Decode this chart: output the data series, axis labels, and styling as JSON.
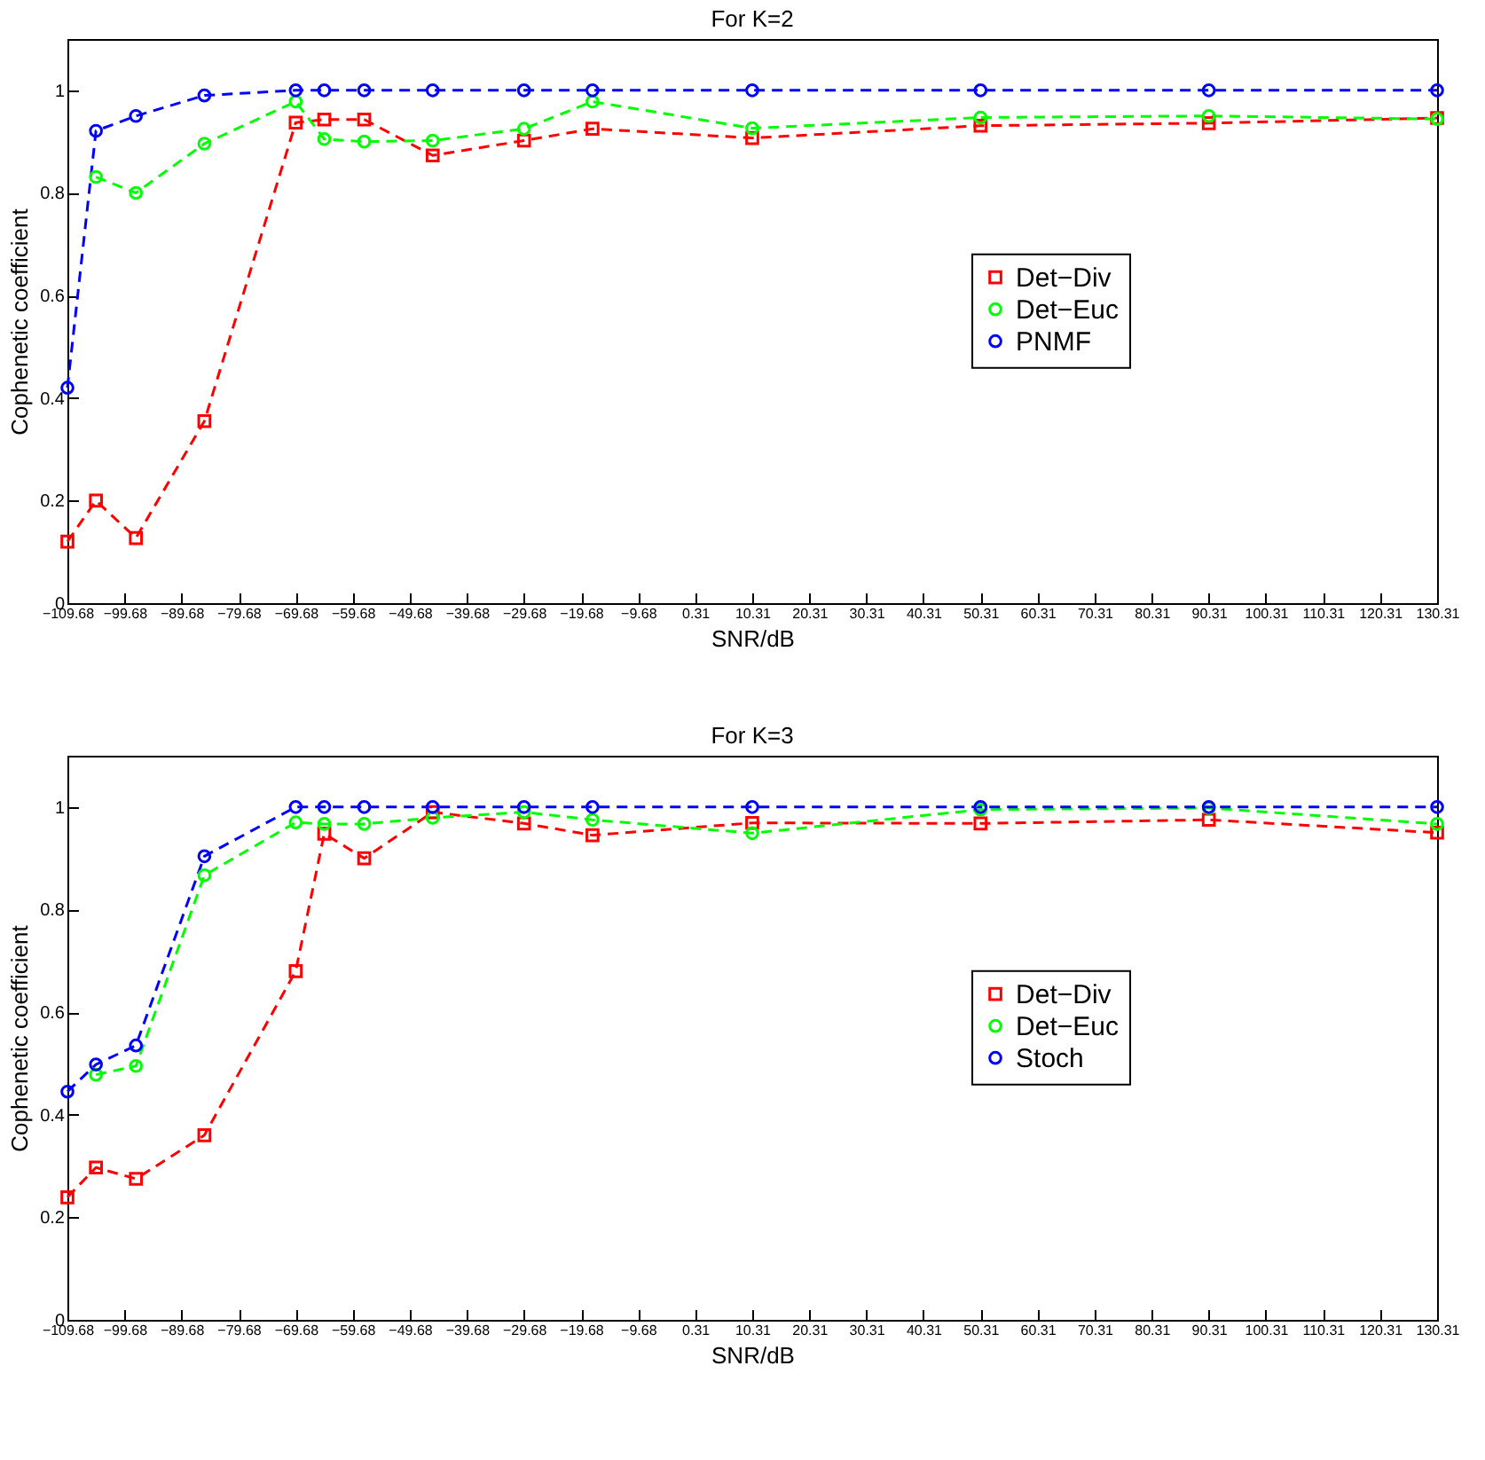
{
  "chart_data": [
    {
      "type": "line",
      "title": "For K=2",
      "xlabel": "SNR/dB",
      "ylabel": "Cophenetic coefficient",
      "x": [
        -109.68,
        -104.68,
        -97.68,
        -85.68,
        -69.68,
        -64.68,
        -57.68,
        -45.68,
        -29.68,
        -17.68,
        10.31,
        50.31,
        90.31,
        130.31
      ],
      "series": [
        {
          "name": "Det−Div",
          "color": "#ff0000",
          "marker": "square",
          "values": [
            0.12,
            0.2,
            0.127,
            0.355,
            0.937,
            0.943,
            0.943,
            0.873,
            0.902,
            0.925,
            0.907,
            0.931,
            0.936,
            0.946
          ]
        },
        {
          "name": "Det−Euc",
          "color": "#00ff00",
          "marker": "circle",
          "values": [
            null,
            0.831,
            0.8,
            0.896,
            0.978,
            0.905,
            0.9,
            0.902,
            0.925,
            0.978,
            0.926,
            0.947,
            0.95,
            0.944
          ]
        },
        {
          "name": "PNMF",
          "color": "#0000ff",
          "marker": "circle",
          "values": [
            0.42,
            0.921,
            0.95,
            0.99,
            1,
            1,
            1,
            1,
            1,
            1,
            1,
            1,
            1,
            1
          ]
        }
      ],
      "xlim": [
        -109.68,
        130.31
      ],
      "xticks": [
        -109.68,
        -99.68,
        -89.68,
        -79.68,
        -69.68,
        -59.68,
        -49.68,
        -39.68,
        -29.68,
        -19.68,
        -9.68,
        0.31,
        10.31,
        20.31,
        30.31,
        40.31,
        50.31,
        60.31,
        70.31,
        80.31,
        90.31,
        100.31,
        110.31,
        120.31,
        130.31
      ],
      "ylim": [
        0,
        1.1
      ],
      "yticks": [
        0,
        0.2,
        0.4,
        0.6,
        0.8,
        1
      ],
      "legend": "right",
      "line_style": "dashed",
      "grid": false
    },
    {
      "type": "line",
      "title": "For K=3",
      "xlabel": "SNR/dB",
      "ylabel": "Cophenetic coefficient",
      "x": [
        -109.68,
        -104.68,
        -97.68,
        -85.68,
        -69.68,
        -64.68,
        -57.68,
        -45.68,
        -29.68,
        -17.68,
        10.31,
        50.31,
        90.31,
        130.31
      ],
      "series": [
        {
          "name": "Det−Div",
          "color": "#ff0000",
          "marker": "square",
          "values": [
            0.239,
            0.297,
            0.275,
            0.36,
            0.68,
            0.948,
            0.9,
            0.99,
            0.968,
            0.945,
            0.969,
            0.968,
            0.975,
            0.95
          ]
        },
        {
          "name": "Det−Euc",
          "color": "#00ff00",
          "marker": "circle",
          "values": [
            null,
            0.478,
            0.495,
            0.867,
            0.97,
            0.967,
            0.967,
            0.979,
            0.99,
            0.975,
            0.949,
            0.995,
            0.998,
            0.967
          ]
        },
        {
          "name": "Stoch",
          "color": "#0000ff",
          "marker": "circle",
          "values": [
            0.445,
            0.498,
            0.535,
            0.904,
            1,
            1,
            1,
            1,
            1,
            1,
            1,
            1,
            1,
            1
          ]
        }
      ],
      "xlim": [
        -109.68,
        130.31
      ],
      "xticks": [
        -109.68,
        -99.68,
        -89.68,
        -79.68,
        -69.68,
        -59.68,
        -49.68,
        -39.68,
        -29.68,
        -19.68,
        -9.68,
        0.31,
        10.31,
        20.31,
        30.31,
        40.31,
        50.31,
        60.31,
        70.31,
        80.31,
        90.31,
        100.31,
        110.31,
        120.31,
        130.31
      ],
      "ylim": [
        0,
        1.1
      ],
      "yticks": [
        0,
        0.2,
        0.4,
        0.6,
        0.8,
        1
      ],
      "legend": "right",
      "line_style": "dashed",
      "grid": false
    }
  ]
}
